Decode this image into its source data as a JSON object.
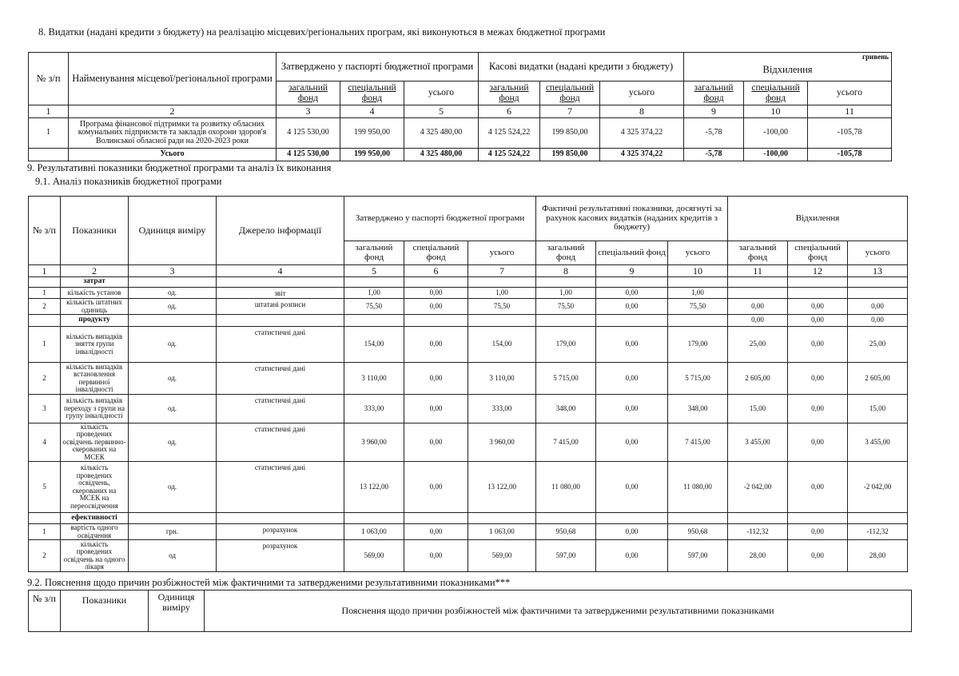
{
  "section8": {
    "title": "8. Видатки (надані кредити з бюджету) на реалізацію місцевих/регіональних програм, які виконуються в межах бюджетної програми",
    "unit": "гривень",
    "headers": {
      "num": "№ з/п",
      "name": "Найменування місцевої/регіональної програми",
      "approved": "Затверджено у паспорті бюджетної програми",
      "cash": "Касові видатки (надані кредити з бюджету)",
      "deviation": "Відхилення",
      "general": "загальний фонд",
      "special": "спеціальний фонд",
      "total": "усього"
    },
    "col_numbers": [
      "1",
      "2",
      "3",
      "4",
      "5",
      "6",
      "7",
      "8",
      "9",
      "10",
      "11"
    ],
    "rows": [
      {
        "num": "1",
        "name": "Програма фінансової підтримки та розвитку обласних комунальних підприємств та закладів охорони здоров'я Волинської обласної ради на 2020-2023 роки",
        "values": [
          "4 125 530,00",
          "199 950,00",
          "4 325 480,00",
          "4 125 524,22",
          "199 850,00",
          "4 325 374,22",
          "-5,78",
          "-100,00",
          "-105,78"
        ]
      }
    ],
    "total": {
      "label": "Усього",
      "values": [
        "4 125 530,00",
        "199 950,00",
        "4 325 480,00",
        "4 125 524,22",
        "199 850,00",
        "4 325 374,22",
        "-5,78",
        "-100,00",
        "-105,78"
      ]
    }
  },
  "section9": {
    "title": "9. Результативні показники бюджетної програми та аналіз їх виконання",
    "subtitle": "9.1. Аналіз показників бюджетної програми",
    "headers": {
      "num": "№ з/п",
      "indicator": "Показники",
      "unit": "Одиниця виміру",
      "source": "Джерело інформації",
      "approved": "Затверджено у паспорті бюджетної програми",
      "actual": "Фактичні результативні показники, досягнуті за рахунок касових видатків (наданих кредитів з бюджету)",
      "deviation": "Відхилення",
      "general": "загальний фонд",
      "special": "спеціальний фонд",
      "total": "усього"
    },
    "col_numbers": [
      "1",
      "2",
      "3",
      "4",
      "5",
      "6",
      "7",
      "8",
      "9",
      "10",
      "11",
      "12",
      "13"
    ],
    "rows": [
      {
        "type": "group",
        "name": "затрат"
      },
      {
        "type": "item",
        "num": "1",
        "name": "кількість установ",
        "unit": "од.",
        "source": "звіт",
        "values": [
          "1,00",
          "0,00",
          "1,00",
          "1,00",
          "0,00",
          "1,00",
          "",
          "",
          ""
        ]
      },
      {
        "type": "item",
        "num": "2",
        "name": "кількість штатних одиниць",
        "unit": "од.",
        "source": "штатані розписи",
        "values": [
          "75,50",
          "0,00",
          "75,50",
          "75,50",
          "0,00",
          "75,50",
          "0,00",
          "0,00",
          "0,00"
        ]
      },
      {
        "type": "group",
        "name": "продукту",
        "values": [
          "",
          "",
          "",
          "",
          "",
          "",
          "0,00",
          "0,00",
          "0,00"
        ]
      },
      {
        "type": "item",
        "num": "1",
        "name": "кількість випадків зняття групи інвалідності",
        "unit": "од.",
        "source": "статистичні дані",
        "values": [
          "154,00",
          "0,00",
          "154,00",
          "179,00",
          "0,00",
          "179,00",
          "25,00",
          "0,00",
          "25,00"
        ]
      },
      {
        "type": "item",
        "num": "2",
        "name": "кількість випадків встановлення первинної інвалідності",
        "unit": "од.",
        "source": "статистичні дані",
        "values": [
          "3 110,00",
          "0,00",
          "3 110,00",
          "5 715,00",
          "0,00",
          "5 715,00",
          "2 605,00",
          "0,00",
          "2 605,00"
        ]
      },
      {
        "type": "item",
        "num": "3",
        "name": "кількість випадків переходу з групи на групу інвалідності",
        "unit": "од.",
        "source": "статистичні дані",
        "values": [
          "333,00",
          "0,00",
          "333,00",
          "348,00",
          "0,00",
          "348,00",
          "15,00",
          "0,00",
          "15,00"
        ]
      },
      {
        "type": "item",
        "num": "4",
        "name": "кількість проведених освідчень первинно-скерованих на МСЕК",
        "unit": "од.",
        "source": "статистичні дані",
        "values": [
          "3 960,00",
          "0,00",
          "3 960,00",
          "7 415,00",
          "0,00",
          "7 415,00",
          "3 455,00",
          "0,00",
          "3 455,00"
        ]
      },
      {
        "type": "item",
        "num": "5",
        "name": "кількість проведених освідчень, скерованих на МСЕК на переосвідчення",
        "unit": "од.",
        "source": "статистичні дані",
        "values": [
          "13 122,00",
          "0,00",
          "13 122,00",
          "11 080,00",
          "0,00",
          "11 080,00",
          "-2 042,00",
          "0,00",
          "-2 042,00"
        ]
      },
      {
        "type": "group",
        "name": "ефективності"
      },
      {
        "type": "item",
        "num": "1",
        "name": "вартість одного освідчення",
        "unit": "грн.",
        "source": "розрахунок",
        "values": [
          "1 063,00",
          "0,00",
          "1 063,00",
          "950,68",
          "0,00",
          "950,68",
          "-112,32",
          "0,00",
          "-112,32"
        ]
      },
      {
        "type": "item",
        "num": "2",
        "name": "кількість проведених освідчень на одного лікаря",
        "unit": "од",
        "source": "розрахунок",
        "values": [
          "569,00",
          "0,00",
          "569,00",
          "597,00",
          "0,00",
          "597,00",
          "28,00",
          "0,00",
          "28,00"
        ]
      }
    ]
  },
  "section92": {
    "title": "9.2. Пояснення щодо причин розбіжностей між фактичними та затвердженими результативними показниками***",
    "headers": {
      "num": "№ з/п",
      "indicator": "Показники",
      "unit": "Одиниця виміру",
      "explanation": "Пояснення щодо причин розбіжностей між фактичними та затвердженими результативними показниками"
    }
  }
}
